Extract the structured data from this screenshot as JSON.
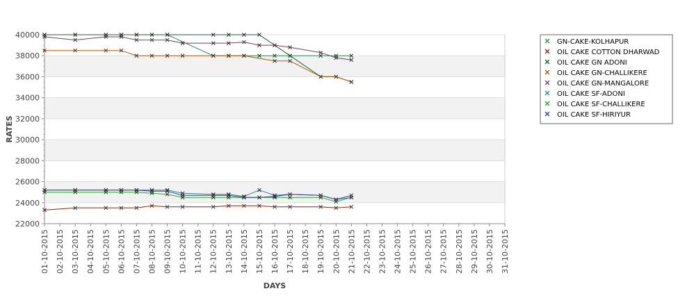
{
  "chart_data": {
    "type": "line",
    "title": "",
    "xlabel": "DAYS",
    "ylabel": "RATES",
    "ylim": [
      22000,
      40000
    ],
    "ytick_step": 2000,
    "grid": "alternating horizontal bands",
    "legend_position": "right",
    "categories": [
      "01-10-2015",
      "02-10-2015",
      "03-10-2015",
      "04-10-2015",
      "05-10-2015",
      "06-10-2015",
      "07-10-2015",
      "08-10-2015",
      "09-10-2015",
      "10-10-2015",
      "11-10-2015",
      "12-10-2015",
      "13-10-2015",
      "14-10-2015",
      "15-10-2015",
      "16-10-2015",
      "17-10-2015",
      "18-10-2015",
      "19-10-2015",
      "20-10-2015",
      "21-10-2015",
      "22-10-2015",
      "23-10-2015",
      "24-10-2015",
      "25-10-2015",
      "26-10-2015",
      "27-10-2015",
      "28-10-2015",
      "29-10-2015",
      "30-10-2015",
      "31-10-2015"
    ],
    "series": [
      {
        "name": "GN-CAKE-KOLHAPUR",
        "color": "#2e8b57",
        "values": [
          40000,
          null,
          40000,
          null,
          40000,
          40000,
          40000,
          40000,
          40000,
          null,
          null,
          38000,
          38000,
          38000,
          38000,
          38000,
          38000,
          null,
          38000,
          38000,
          38000,
          null,
          null,
          null,
          null,
          null,
          null,
          null,
          null,
          null,
          null
        ]
      },
      {
        "name": "OIL CAKE COTTON DHARWAD",
        "color": "#8b2500",
        "values": [
          23300,
          null,
          23500,
          null,
          23500,
          23500,
          23500,
          23700,
          23600,
          23600,
          null,
          23600,
          23700,
          23700,
          23700,
          23600,
          23600,
          null,
          23600,
          23500,
          23600,
          null,
          null,
          null,
          null,
          null,
          null,
          null,
          null,
          null,
          null
        ]
      },
      {
        "name": "OIL CAKE GN ADONI",
        "color": "#1f5f2f",
        "values": [
          40000,
          null,
          40000,
          null,
          40000,
          40000,
          40000,
          40000,
          40000,
          null,
          null,
          40000,
          40000,
          40000,
          40000,
          39000,
          38000,
          null,
          36000,
          36000,
          35500,
          null,
          null,
          null,
          null,
          null,
          null,
          null,
          null,
          null,
          null
        ]
      },
      {
        "name": "OIL CAKE GN-CHALLIKERE",
        "color": "#b35900",
        "values": [
          38500,
          null,
          38500,
          null,
          38500,
          38500,
          38000,
          38000,
          38000,
          38000,
          null,
          38000,
          38000,
          38000,
          null,
          37500,
          37500,
          null,
          36000,
          36000,
          35500,
          null,
          null,
          null,
          null,
          null,
          null,
          null,
          null,
          null,
          null
        ]
      },
      {
        "name": "OIL CAKE GN-MANGALORE",
        "color": "#7a3d5c",
        "values": [
          39800,
          null,
          39500,
          null,
          39800,
          39800,
          39500,
          39500,
          39500,
          39200,
          null,
          39200,
          39200,
          39300,
          39000,
          39000,
          38800,
          null,
          38300,
          37800,
          37600,
          null,
          null,
          null,
          null,
          null,
          null,
          null,
          null,
          null,
          null
        ]
      },
      {
        "name": "OIL CAKE SF-ADONI",
        "color": "#1e88a8",
        "values": [
          25200,
          null,
          25200,
          null,
          25200,
          25200,
          25200,
          25200,
          25200,
          24900,
          null,
          24800,
          24800,
          24600,
          25200,
          24700,
          24800,
          null,
          24700,
          24300,
          24500,
          null,
          null,
          null,
          null,
          null,
          null,
          null,
          null,
          null,
          null
        ]
      },
      {
        "name": "OIL CAKE SF-CHALLIKERE",
        "color": "#22aa22",
        "values": [
          25000,
          null,
          25000,
          null,
          25000,
          25000,
          25000,
          24900,
          24800,
          24500,
          null,
          24500,
          24500,
          24500,
          24500,
          24500,
          24500,
          null,
          24500,
          24100,
          24500,
          null,
          null,
          null,
          null,
          null,
          null,
          null,
          null,
          null,
          null
        ]
      },
      {
        "name": "OIL CAKE SF-HIRIYUR",
        "color": "#2a3a8c",
        "values": [
          25200,
          null,
          25200,
          null,
          25200,
          25200,
          25200,
          25100,
          25100,
          24700,
          null,
          24700,
          24700,
          24500,
          24500,
          24600,
          24800,
          null,
          24700,
          24300,
          24700,
          null,
          null,
          null,
          null,
          null,
          null,
          null,
          null,
          null,
          null
        ]
      }
    ]
  }
}
